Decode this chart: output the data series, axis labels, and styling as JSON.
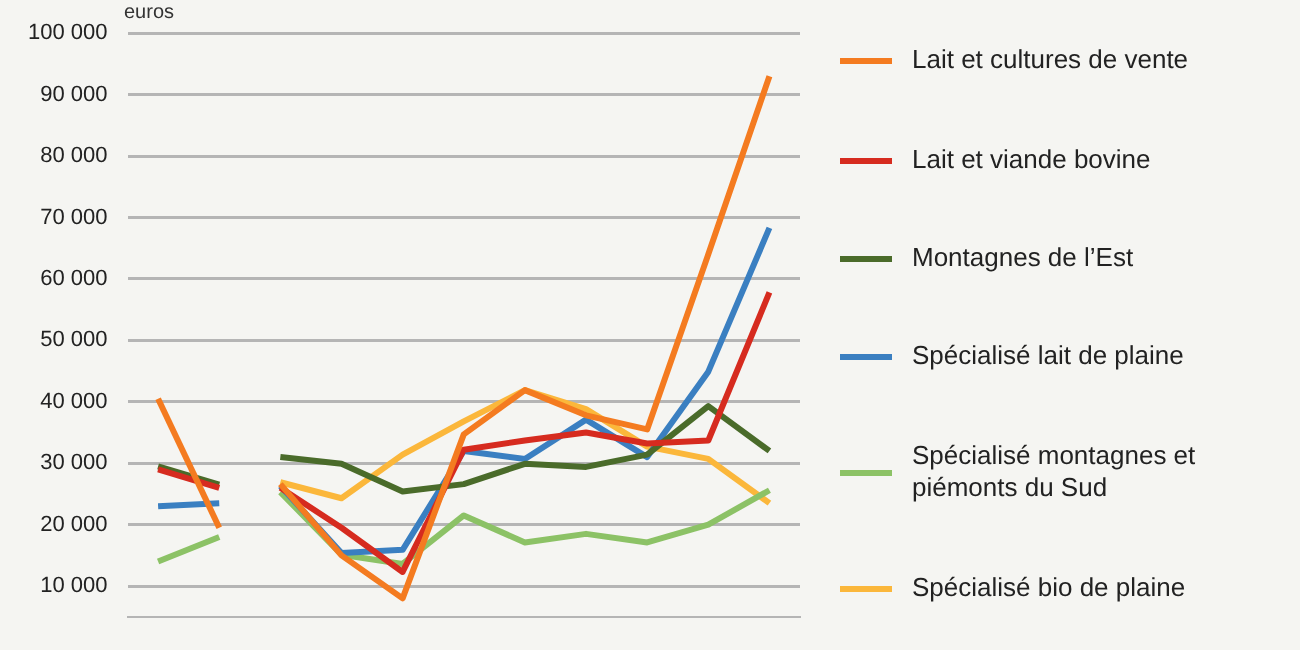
{
  "chart_data": {
    "type": "line",
    "ylabel": "euros",
    "categories": [
      null,
      null,
      null,
      null,
      null,
      null,
      null,
      null,
      null,
      null,
      null
    ],
    "series": [
      {
        "color": "#f47b20",
        "values": [
          40500,
          19500,
          null,
          null,
          null,
          null,
          null,
          null,
          null,
          null,
          null
        ]
      },
      {
        "color": "#d62b1f",
        "values": [
          29000,
          26000,
          null,
          null,
          null,
          null,
          null,
          null,
          null,
          null,
          null
        ]
      },
      {
        "color": "#4a6b2a",
        "values": [
          29500,
          26500,
          null,
          null,
          null,
          null,
          null,
          null,
          null,
          null,
          null
        ]
      },
      {
        "color": "#3a7fc1",
        "values": [
          23000,
          23500,
          null,
          null,
          null,
          null,
          null,
          null,
          null,
          null,
          null
        ]
      },
      {
        "color": "#8cc266",
        "values": [
          14000,
          18000,
          null,
          null,
          null,
          null,
          null,
          null,
          null,
          null,
          null
        ]
      },
      {
        "name": "Lait et cultures de vente",
        "color": "#f47b20",
        "values": [
          null,
          null,
          26600,
          15000,
          8000,
          34700,
          41900,
          37800,
          35500,
          64000,
          93000
        ]
      },
      {
        "name": "Lait et viande bovine",
        "color": "#d62b1f",
        "values": [
          null,
          null,
          26000,
          19500,
          12300,
          32200,
          33700,
          35000,
          33200,
          33700,
          57800
        ]
      },
      {
        "name": "Montagnes de l’Est",
        "color": "#4a6b2a",
        "values": [
          null,
          null,
          31000,
          29900,
          25400,
          26600,
          29900,
          29400,
          31400,
          39300,
          32000
        ]
      },
      {
        "name": "Spécialisé lait de plaine",
        "color": "#3a7fc1",
        "values": [
          null,
          null,
          26300,
          15400,
          15900,
          32000,
          30700,
          37100,
          31000,
          44900,
          68300
        ]
      },
      {
        "name": "Spécialisé montagnes et piémonts du Sud",
        "color": "#8cc266",
        "values": [
          null,
          null,
          25300,
          15100,
          13600,
          21500,
          17100,
          18500,
          17100,
          20000,
          25600
        ]
      },
      {
        "name": "Spécialisé bio de plaine",
        "color": "#fbb73b",
        "values": [
          null,
          null,
          26900,
          24300,
          31400,
          36800,
          41900,
          38800,
          32700,
          30700,
          23500
        ]
      }
    ],
    "ylim": [
      5000,
      100000
    ],
    "yticks": [
      {
        "value": 10000,
        "label": "10 000"
      },
      {
        "value": 20000,
        "label": "20 000"
      },
      {
        "value": 30000,
        "label": "30 000"
      },
      {
        "value": 40000,
        "label": "40 000"
      },
      {
        "value": 50000,
        "label": "50 000"
      },
      {
        "value": 60000,
        "label": "60 000"
      },
      {
        "value": 70000,
        "label": "70 000"
      },
      {
        "value": 80000,
        "label": "80 000"
      },
      {
        "value": 90000,
        "label": "90 000"
      },
      {
        "value": 100000,
        "label": "100 000"
      }
    ],
    "tick_labels": "y",
    "grid": "y",
    "legend": "right",
    "marker": "none",
    "line_style": "solid"
  }
}
